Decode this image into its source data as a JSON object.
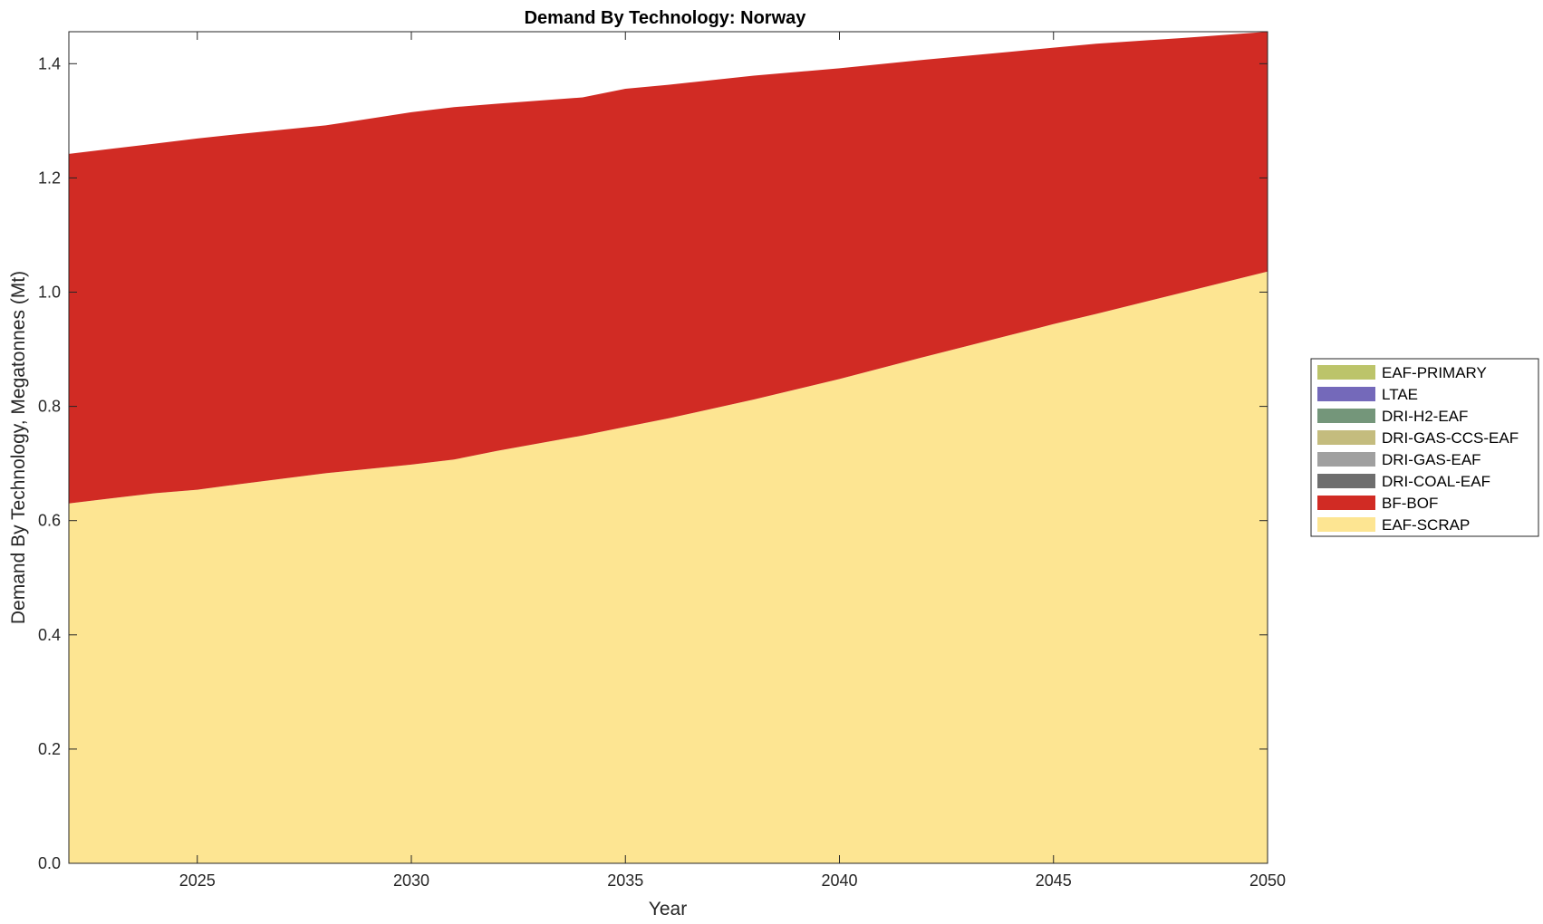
{
  "chart_data": {
    "type": "area",
    "stacked": true,
    "title": "Demand By Technology: Norway",
    "xlabel": "Year",
    "ylabel": "Demand By Technology, Megatonnes (Mt)",
    "xlim": [
      2022,
      2050
    ],
    "ylim": [
      0,
      1.456
    ],
    "xticks": [
      2025,
      2030,
      2035,
      2040,
      2045,
      2050
    ],
    "yticks": [
      0,
      0.2,
      0.4,
      0.6,
      0.8,
      1.0,
      1.2,
      1.4
    ],
    "ytick_labels": [
      "0.0",
      "0.2",
      "0.4",
      "0.6",
      "0.8",
      "1.0",
      "1.2",
      "1.4"
    ],
    "grid": false,
    "legend_position": "right",
    "x": [
      2022,
      2024,
      2025,
      2026,
      2028,
      2030,
      2031,
      2032,
      2034,
      2035,
      2036,
      2038,
      2040,
      2042,
      2044,
      2045,
      2046,
      2048,
      2050
    ],
    "series": [
      {
        "name": "EAF-SCRAP",
        "color": "#FDE592",
        "values": [
          0.63,
          0.648,
          0.654,
          0.664,
          0.683,
          0.698,
          0.707,
          0.722,
          0.749,
          0.764,
          0.779,
          0.812,
          0.848,
          0.887,
          0.925,
          0.944,
          0.962,
          0.999,
          1.036
        ]
      },
      {
        "name": "BF-BOF",
        "color": "#D12B24",
        "values": [
          0.612,
          0.612,
          0.615,
          0.613,
          0.609,
          0.617,
          0.617,
          0.608,
          0.592,
          0.592,
          0.584,
          0.567,
          0.544,
          0.52,
          0.496,
          0.484,
          0.473,
          0.446,
          0.42
        ]
      },
      {
        "name": "DRI-COAL-EAF",
        "color": "#6E6E6E",
        "values": [
          0,
          0,
          0,
          0,
          0,
          0,
          0,
          0,
          0,
          0,
          0,
          0,
          0,
          0,
          0,
          0,
          0,
          0,
          0
        ]
      },
      {
        "name": "DRI-GAS-EAF",
        "color": "#A0A0A0",
        "values": [
          0,
          0,
          0,
          0,
          0,
          0,
          0,
          0,
          0,
          0,
          0,
          0,
          0,
          0,
          0,
          0,
          0,
          0,
          0
        ]
      },
      {
        "name": "DRI-GAS-CCS-EAF",
        "color": "#C4BC7E",
        "values": [
          0,
          0,
          0,
          0,
          0,
          0,
          0,
          0,
          0,
          0,
          0,
          0,
          0,
          0,
          0,
          0,
          0,
          0,
          0
        ]
      },
      {
        "name": "DRI-H2-EAF",
        "color": "#74967A",
        "values": [
          0,
          0,
          0,
          0,
          0,
          0,
          0,
          0,
          0,
          0,
          0,
          0,
          0,
          0,
          0,
          0,
          0,
          0,
          0
        ]
      },
      {
        "name": "LTAE",
        "color": "#7469BA",
        "values": [
          0,
          0,
          0,
          0,
          0,
          0,
          0,
          0,
          0,
          0,
          0,
          0,
          0,
          0,
          0,
          0,
          0,
          0,
          0
        ]
      },
      {
        "name": "EAF-PRIMARY",
        "color": "#BCC46A",
        "values": [
          0,
          0,
          0,
          0,
          0,
          0,
          0,
          0,
          0,
          0,
          0,
          0,
          0,
          0,
          0,
          0,
          0,
          0,
          0
        ]
      }
    ],
    "legend_order": [
      "EAF-PRIMARY",
      "LTAE",
      "DRI-H2-EAF",
      "DRI-GAS-CCS-EAF",
      "DRI-GAS-EAF",
      "DRI-COAL-EAF",
      "BF-BOF",
      "EAF-SCRAP"
    ]
  }
}
